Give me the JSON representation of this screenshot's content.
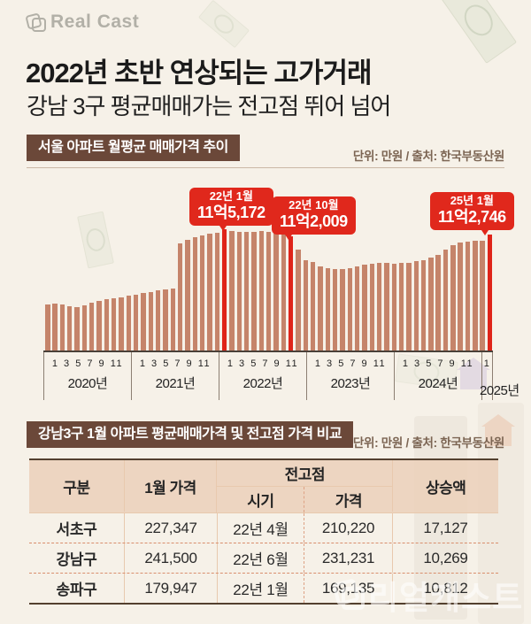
{
  "header": {
    "logo_text": "Real Cast"
  },
  "title": "2022년 초반 연상되는 고가거래",
  "subtitle": "강남 3구 평균매매가는 전고점 뛰어 넘어",
  "colors": {
    "background": "#f6f1e8",
    "badge_brown": "#6b4839",
    "bar_salmon": "#c5846a",
    "highlight_red": "#df2419",
    "callout_red": "#e0281c",
    "table_header_bg": "#ebd0ba",
    "table_frame_dark": "#53402f",
    "unit_text_brown": "#7c6553"
  },
  "section_chart": {
    "badge": "서울 아파트 월평균 매매가격 추이",
    "unit_source": "단위: 만원 / 출처: 한국부동산원"
  },
  "chart_data": {
    "type": "bar",
    "title": "서울 아파트 월평균 매매가격 추이",
    "unit": "만원",
    "source": "한국부동산원",
    "x_start": "2020-01",
    "x_end": "2025-01",
    "values": [
      79000,
      79500,
      79200,
      78400,
      78000,
      78800,
      79800,
      81000,
      81500,
      82000,
      82500,
      83200,
      84000,
      84800,
      85300,
      85800,
      86300,
      86900,
      108500,
      110300,
      111500,
      112400,
      113000,
      113800,
      115172,
      114500,
      114200,
      114000,
      114200,
      114400,
      114000,
      113500,
      112800,
      112009,
      105400,
      100300,
      99500,
      97500,
      96500,
      96000,
      96300,
      96800,
      97500,
      98200,
      98800,
      99200,
      99000,
      98800,
      99000,
      99300,
      99800,
      100500,
      101500,
      103000,
      105500,
      107500,
      108800,
      109500,
      109800,
      110000,
      112746
    ],
    "highlight_indices": [
      24,
      33,
      60
    ],
    "annotations": [
      {
        "period": "22년 1월",
        "price_label": "11억5,172",
        "month_index": 24,
        "value": 115172
      },
      {
        "period": "22년 10월",
        "price_label": "11억2,009",
        "month_index": 33,
        "value": 112009
      },
      {
        "period": "25년 1월",
        "price_label": "11억2,746",
        "month_index": 60,
        "value": 112746
      }
    ],
    "x_axis": {
      "years": [
        {
          "label": "2020년",
          "ticks": "1 3 5 7 9 11"
        },
        {
          "label": "2021년",
          "ticks": "1 3 5 7 9 11"
        },
        {
          "label": "2022년",
          "ticks": "1 3 5 7 9 11"
        },
        {
          "label": "2023년",
          "ticks": "1 3 5 7 9 11"
        },
        {
          "label": "2024년",
          "ticks": "1 3 5 7 9 11"
        },
        {
          "label": "2025년",
          "ticks": "1"
        }
      ]
    },
    "ylim_display": [
      57000,
      117000
    ],
    "grid": false,
    "legend": "none"
  },
  "section_table": {
    "badge": "강남3구 1월 아파트 평균매매가격 및 전고점 가격 비교",
    "unit_source": "단위: 만원 / 출처: 한국부동산원",
    "table": {
      "headers": {
        "district": "구분",
        "jan_price": "1월 가격",
        "peak_group": "전고점",
        "peak_time": "시기",
        "peak_price": "가격",
        "increase": "상승액"
      },
      "rows": [
        {
          "district": "서초구",
          "jan_price": "227,347",
          "peak_time": "22년 4월",
          "peak_price": "210,220",
          "increase": "17,127"
        },
        {
          "district": "강남구",
          "jan_price": "241,500",
          "peak_time": "22년 6월",
          "peak_price": "231,231",
          "increase": "10,269"
        },
        {
          "district": "송파구",
          "jan_price": "179,947",
          "peak_time": "22년 1월",
          "peak_price": "169,135",
          "increase": "10,812"
        }
      ]
    }
  },
  "watermark": {
    "text": "리얼캐스트"
  }
}
